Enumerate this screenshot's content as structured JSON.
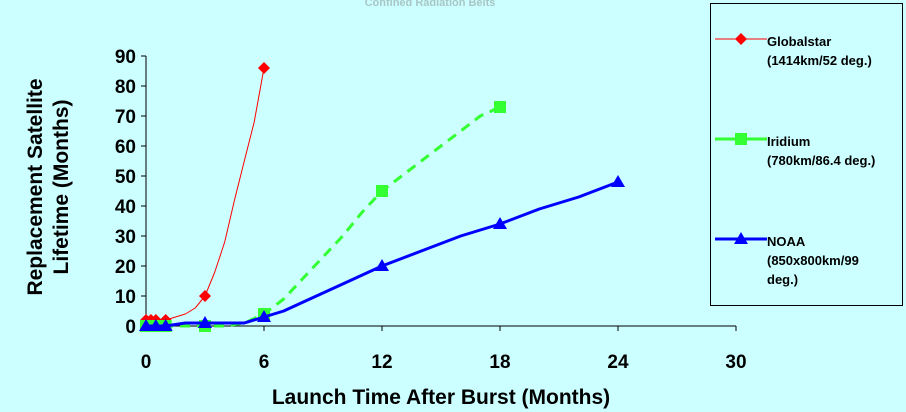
{
  "chart_data": {
    "type": "line",
    "title": "Confined Radiation Belts",
    "xlabel": "Launch Time After Burst (Months)",
    "ylabel": "Replacement Satellite Lifetime (Months)",
    "ylabel_lines": [
      "Replacement Satellite",
      "Lifetime (Months)"
    ],
    "xlim": [
      0,
      30
    ],
    "ylim": [
      0,
      90
    ],
    "xticks": [
      0,
      6,
      12,
      18,
      24,
      30
    ],
    "yticks": [
      0,
      10,
      20,
      30,
      40,
      50,
      60,
      70,
      80,
      90
    ],
    "grid": false,
    "legend_position": "right",
    "series": [
      {
        "name": "Globalstar (1414km/52 deg.)",
        "legend_lines": "Globalstar\n(1414km/52 deg.)",
        "color": "#ff0000",
        "marker": "diamond",
        "line_style": "solid",
        "line_width": 1,
        "x": [
          0,
          0.25,
          0.5,
          1,
          1.5,
          2,
          2.5,
          3,
          3.5,
          4,
          4.5,
          5,
          5.5,
          6
        ],
        "y": [
          2,
          2,
          2,
          2,
          3,
          4,
          6,
          10,
          18,
          28,
          42,
          55,
          68,
          86
        ],
        "marker_x": [
          0,
          0.25,
          0.5,
          1,
          3,
          6
        ],
        "marker_y": [
          2,
          2,
          2,
          2,
          10,
          86
        ]
      },
      {
        "name": "Iridium (780km/86.4 deg.)",
        "legend_lines": "Iridium\n(780km/86.4 deg.)",
        "color": "#33ff33",
        "marker": "square",
        "line_style": "dashed",
        "line_width": 3,
        "x": [
          0,
          0.5,
          1,
          3,
          4,
          5,
          6,
          7,
          8,
          9,
          10,
          11,
          12,
          13,
          14,
          15,
          16,
          17,
          18
        ],
        "y": [
          0,
          0,
          0,
          0,
          0,
          1,
          4,
          9,
          16,
          23,
          30,
          38,
          45,
          50,
          55,
          60,
          65,
          70,
          73
        ],
        "marker_x": [
          0,
          0.5,
          1,
          3,
          6,
          12,
          18
        ],
        "marker_y": [
          0,
          0,
          0,
          0,
          4,
          45,
          73
        ]
      },
      {
        "name": "NOAA (850x800km/99 deg.)",
        "legend_lines": "NOAA\n(850x800km/99\ndeg.)",
        "color": "#0000ff",
        "marker": "triangle",
        "line_style": "solid",
        "line_width": 3,
        "x": [
          0,
          0.5,
          1,
          2,
          3,
          4,
          5,
          6,
          7,
          8,
          9,
          10,
          11,
          12,
          14,
          16,
          18,
          20,
          22,
          24
        ],
        "y": [
          0,
          0,
          0,
          1,
          1,
          1,
          1,
          3,
          5,
          8,
          11,
          14,
          17,
          20,
          25,
          30,
          34,
          39,
          43,
          48
        ],
        "marker_x": [
          0,
          0.5,
          1,
          3,
          6,
          12,
          18,
          24
        ],
        "marker_y": [
          0,
          0,
          0,
          1,
          3,
          20,
          34,
          48
        ]
      }
    ]
  }
}
